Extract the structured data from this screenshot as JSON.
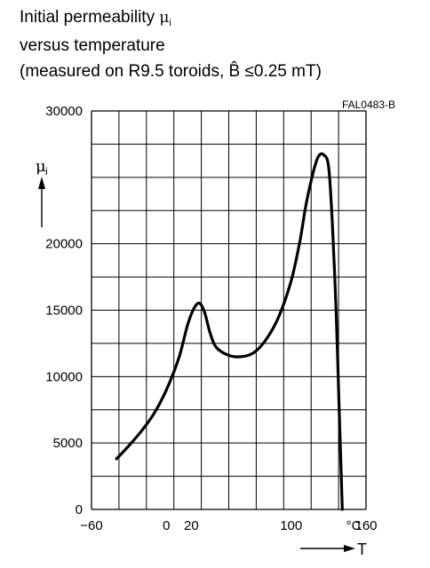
{
  "title": {
    "line1_text": "Initial permeability ",
    "line1_symbol": "μ",
    "line1_sub": "i",
    "line2": "versus temperature",
    "line3": "(measured on R9.5 toroids, B̂ ≤0.25 mT)"
  },
  "figure_code": "FAL0483-B",
  "chart_data": {
    "type": "line",
    "x_axis": {
      "label": "T",
      "unit": "°C",
      "range": [
        -60,
        160
      ],
      "tick_labels": [
        {
          "value": -60,
          "text": "−60"
        },
        {
          "value": 0,
          "text": "0"
        },
        {
          "value": 20,
          "text": "20"
        },
        {
          "value": 100,
          "text": "100"
        },
        {
          "value": 160,
          "text": "160"
        }
      ]
    },
    "y_axis": {
      "label": "μ",
      "label_sub": "i",
      "range": [
        0,
        30000
      ],
      "tick_labels": [
        {
          "value": 0,
          "text": "0"
        },
        {
          "value": 5000,
          "text": "5000"
        },
        {
          "value": 10000,
          "text": "10000"
        },
        {
          "value": 15000,
          "text": "15000"
        },
        {
          "value": 20000,
          "text": "20000"
        },
        {
          "value": 30000,
          "text": "30000"
        }
      ]
    },
    "grid": true,
    "series": [
      {
        "points": [
          [
            -40,
            3800
          ],
          [
            -30,
            4800
          ],
          [
            -20,
            5900
          ],
          [
            -10,
            7200
          ],
          [
            0,
            9000
          ],
          [
            10,
            11400
          ],
          [
            18,
            14200
          ],
          [
            25,
            15500
          ],
          [
            30,
            15000
          ],
          [
            35,
            13300
          ],
          [
            40,
            12200
          ],
          [
            50,
            11600
          ],
          [
            60,
            11500
          ],
          [
            70,
            11800
          ],
          [
            80,
            12800
          ],
          [
            90,
            14500
          ],
          [
            100,
            17200
          ],
          [
            107,
            20200
          ],
          [
            112,
            23000
          ],
          [
            118,
            25500
          ],
          [
            122,
            26600
          ],
          [
            126,
            26700
          ],
          [
            130,
            25800
          ],
          [
            133,
            21500
          ],
          [
            136,
            15000
          ],
          [
            138,
            9000
          ],
          [
            140,
            3000
          ],
          [
            141,
            0
          ]
        ]
      }
    ]
  }
}
